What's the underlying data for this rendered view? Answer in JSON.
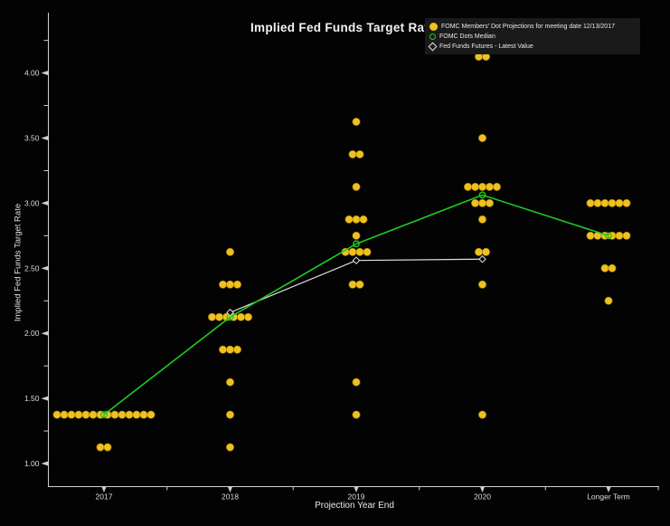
{
  "title": "Implied Fed Funds Target Rate",
  "legend": {
    "position": "top-right",
    "items": [
      {
        "marker": "filled-circle",
        "color": "#f0c11e",
        "label": "FOMC Members' Dot Projections for meeting date 12/13/2017"
      },
      {
        "marker": "open-circle",
        "color": "#1ecc1e",
        "label": "FOMC Dots Median"
      },
      {
        "marker": "open-diamond",
        "color": "#e8e8e8",
        "label": "Fed Funds Futures - Latest Value"
      }
    ]
  },
  "colors": {
    "background": "#030303",
    "dots": "#f0c11e",
    "median_line": "#1ecc1e",
    "futures_line": "#e0e0e0",
    "axis": "#cfcfcf",
    "tick_label": "#dcdcdc"
  },
  "chart_data": {
    "type": "scatter",
    "title": "Implied Fed Funds Target Rate",
    "xlabel": "Projection Year End",
    "ylabel": "Implied Fed Funds Target Rate",
    "categories": [
      "2017",
      "2018",
      "2019",
      "2020",
      "Longer Term"
    ],
    "ylim": [
      0.8,
      4.45
    ],
    "grid": false,
    "legend_position": "top-right",
    "ytick_labels": [
      "1.00",
      "1.50",
      "2.00",
      "2.50",
      "3.00",
      "3.50",
      "4.00"
    ],
    "ytick_values": [
      1.0,
      1.5,
      2.0,
      2.5,
      3.0,
      3.5,
      4.0
    ],
    "ytick_minor": [
      1.25,
      1.75,
      2.25,
      2.75,
      3.25,
      3.75,
      4.25
    ],
    "series": [
      {
        "name": "FOMC Members' Dot Projections for meeting date 12/13/2017",
        "type": "dot-cluster",
        "color": "#f0c11e",
        "clusters": [
          {
            "category": "2017",
            "dots": [
              {
                "rate": 1.375,
                "count": 14
              },
              {
                "rate": 1.125,
                "count": 2
              }
            ]
          },
          {
            "category": "2018",
            "dots": [
              {
                "rate": 2.625,
                "count": 1
              },
              {
                "rate": 2.375,
                "count": 3
              },
              {
                "rate": 2.125,
                "count": 6
              },
              {
                "rate": 1.875,
                "count": 3
              },
              {
                "rate": 1.625,
                "count": 1
              },
              {
                "rate": 1.375,
                "count": 1
              },
              {
                "rate": 1.125,
                "count": 1
              }
            ]
          },
          {
            "category": "2019",
            "dots": [
              {
                "rate": 3.625,
                "count": 1
              },
              {
                "rate": 3.375,
                "count": 2
              },
              {
                "rate": 3.125,
                "count": 1
              },
              {
                "rate": 2.875,
                "count": 3
              },
              {
                "rate": 2.75,
                "count": 1
              },
              {
                "rate": 2.625,
                "count": 4
              },
              {
                "rate": 2.375,
                "count": 2
              },
              {
                "rate": 1.625,
                "count": 1
              },
              {
                "rate": 1.375,
                "count": 1
              }
            ]
          },
          {
            "category": "2020",
            "dots": [
              {
                "rate": 4.125,
                "count": 2
              },
              {
                "rate": 3.5,
                "count": 1
              },
              {
                "rate": 3.125,
                "count": 5
              },
              {
                "rate": 3.0,
                "count": 3
              },
              {
                "rate": 2.875,
                "count": 1
              },
              {
                "rate": 2.625,
                "count": 2
              },
              {
                "rate": 2.375,
                "count": 1
              },
              {
                "rate": 1.375,
                "count": 1
              }
            ]
          },
          {
            "category": "Longer Term",
            "dots": [
              {
                "rate": 3.0,
                "count": 6
              },
              {
                "rate": 2.75,
                "count": 6
              },
              {
                "rate": 2.5,
                "count": 2
              },
              {
                "rate": 2.25,
                "count": 1
              }
            ]
          }
        ]
      },
      {
        "name": "FOMC Dots Median",
        "type": "line",
        "marker": "open-circle",
        "color": "#1ecc1e",
        "points": [
          {
            "category": "2017",
            "rate": 1.375
          },
          {
            "category": "2018",
            "rate": 2.125
          },
          {
            "category": "2019",
            "rate": 2.6875
          },
          {
            "category": "2020",
            "rate": 3.0625
          },
          {
            "category": "Longer Term",
            "rate": 2.75
          }
        ]
      },
      {
        "name": "Fed Funds Futures - Latest Value",
        "type": "line",
        "marker": "open-diamond",
        "color": "#e0e0e0",
        "points": [
          {
            "category": "2018",
            "rate": 2.16
          },
          {
            "category": "2019",
            "rate": 2.56
          },
          {
            "category": "2020",
            "rate": 2.57
          }
        ]
      }
    ]
  }
}
